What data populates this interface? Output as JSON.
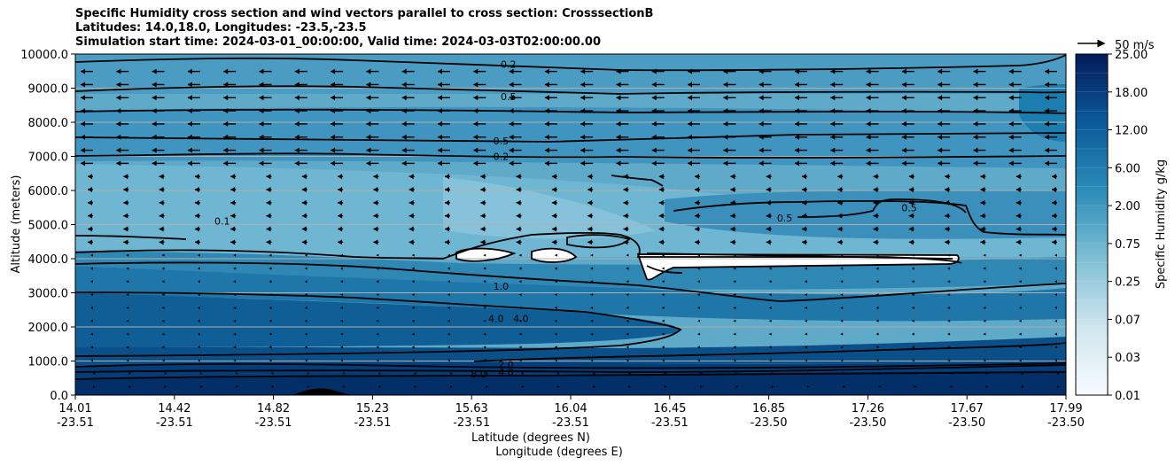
{
  "chart_data": {
    "type": "contour",
    "title_lines": [
      "Specific Humidity cross section and wind vectors parallel to cross section: CrosssectionB",
      "Latitudes: 14.0,18.0, Longitudes: -23.5,-23.5",
      "Simulation start time: 2024-03-01_00:00:00, Valid time: 2024-03-03T02:00:00.00"
    ],
    "ylabel": "Altitude (meters)",
    "xlabel_lines": [
      "Latitude (degrees N)",
      "Longitude (degrees E)"
    ],
    "ylim": [
      0,
      10000
    ],
    "y_ticks": [
      "0.0",
      "1000.0",
      "2000.0",
      "3000.0",
      "4000.0",
      "5000.0",
      "6000.0",
      "7000.0",
      "8000.0",
      "9000.0",
      "10000.0"
    ],
    "x_ticks": [
      {
        "lat": "14.01",
        "lon": "-23.51"
      },
      {
        "lat": "14.42",
        "lon": "-23.51"
      },
      {
        "lat": "14.82",
        "lon": "-23.51"
      },
      {
        "lat": "15.23",
        "lon": "-23.51"
      },
      {
        "lat": "15.63",
        "lon": "-23.51"
      },
      {
        "lat": "16.04",
        "lon": "-23.51"
      },
      {
        "lat": "16.45",
        "lon": "-23.51"
      },
      {
        "lat": "16.85",
        "lon": "-23.50"
      },
      {
        "lat": "17.26",
        "lon": "-23.50"
      },
      {
        "lat": "17.67",
        "lon": "-23.50"
      },
      {
        "lat": "17.99",
        "lon": "-23.50"
      }
    ],
    "colorbar": {
      "label": "Specific Humidity g/kg",
      "ticks": [
        "0.01",
        "0.03",
        "0.07",
        "0.25",
        "0.75",
        "2.00",
        "6.00",
        "12.00",
        "18.00",
        "25.00"
      ]
    },
    "quiver_key": "50 m/s",
    "contour_labels": [
      {
        "text": "0.2",
        "x": 15.75,
        "y": 9700
      },
      {
        "text": "0.5",
        "x": 15.75,
        "y": 8750
      },
      {
        "text": "0.5",
        "x": 15.72,
        "y": 7450
      },
      {
        "text": "0.2",
        "x": 15.72,
        "y": 7000
      },
      {
        "text": "0.1",
        "x": 14.6,
        "y": 5100
      },
      {
        "text": "1.0",
        "x": 15.72,
        "y": 3200
      },
      {
        "text": "4.0",
        "x": 15.7,
        "y": 2250
      },
      {
        "text": "4.0",
        "x": 15.8,
        "y": 2250
      },
      {
        "text": "2.0",
        "x": 15.74,
        "y": 900
      },
      {
        "text": "8.0",
        "x": 15.63,
        "y": 620
      },
      {
        "text": "4.0",
        "x": 15.74,
        "y": 680
      },
      {
        "text": "0.5",
        "x": 16.86,
        "y": 5200
      },
      {
        "text": "0.5",
        "x": 17.36,
        "y": 5500
      }
    ]
  }
}
